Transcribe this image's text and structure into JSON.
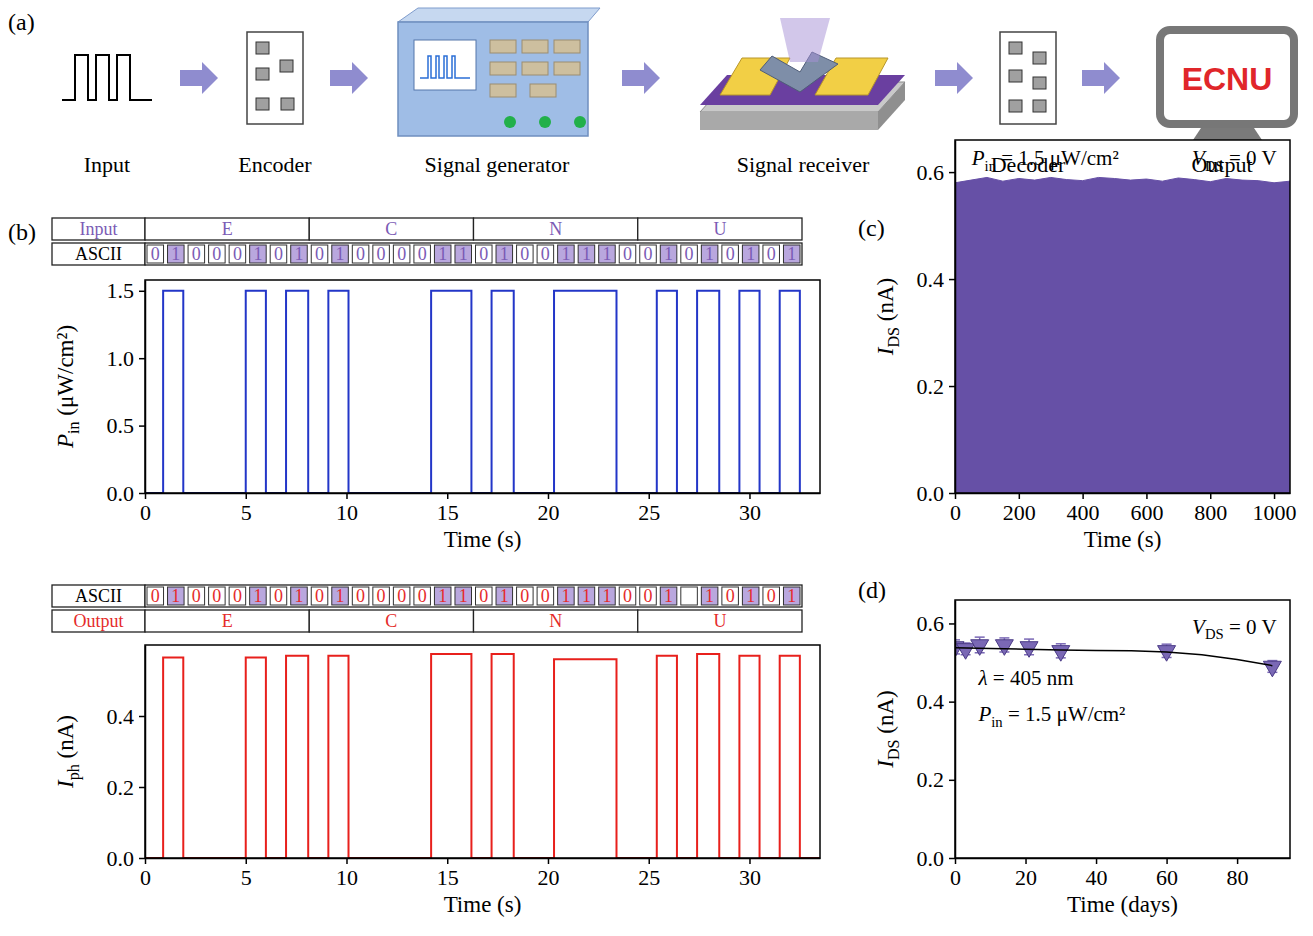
{
  "panel_labels": [
    "(a)",
    "(b)",
    "(c)",
    "(d)"
  ],
  "diagram": {
    "steps": [
      "Input",
      "Encoder",
      "Signal generator",
      "Signal receiver",
      "Decoder",
      "Output"
    ],
    "screen_text": "ECNU"
  },
  "chart_data": [
    {
      "type": "line",
      "xlabel": "Time (s)",
      "ylabel": [
        "P",
        "in",
        " (μW/cm²)"
      ],
      "xlim": [
        0,
        33.5
      ],
      "xticks": [
        0,
        5,
        10,
        15,
        20,
        25,
        30
      ],
      "ylim": [
        0,
        1.58
      ],
      "yticks": [
        {
          "value": 0,
          "label": "0.0"
        },
        0.5,
        {
          "value": 1,
          "label": "1.0"
        },
        1.5
      ],
      "grid": false,
      "table": {
        "title": "Input",
        "letters": [
          "E",
          "C",
          "N",
          "U"
        ],
        "code_label": "ASCII",
        "bits": [
          0,
          1,
          0,
          0,
          0,
          1,
          0,
          1,
          0,
          1,
          0,
          0,
          0,
          0,
          1,
          1,
          0,
          1,
          0,
          0,
          1,
          1,
          1,
          0,
          0,
          1,
          0,
          1,
          0,
          1,
          0,
          1
        ]
      },
      "series": [
        {
          "color": "#2336c8",
          "x": [
            0,
            0.9,
            0.9,
            1.9,
            1.9,
            5,
            5,
            6,
            6,
            7,
            7,
            8.1,
            8.1,
            9.1,
            9.1,
            10.1,
            10.1,
            14.2,
            14.2,
            16.2,
            16.2,
            17.2,
            17.2,
            18.3,
            18.3,
            20.3,
            20.3,
            23.4,
            23.4,
            25.4,
            25.4,
            26.4,
            26.4,
            27.4,
            27.4,
            28.5,
            28.5,
            29.5,
            29.5,
            30.5,
            30.5,
            31.5,
            31.5,
            32.5,
            32.5
          ],
          "values": [
            0,
            0,
            1.5,
            1.5,
            0,
            0,
            1.5,
            1.5,
            0,
            0,
            1.5,
            1.5,
            0,
            0,
            1.5,
            1.5,
            0,
            0,
            1.5,
            1.5,
            0,
            0,
            1.5,
            1.5,
            0,
            0,
            1.5,
            1.5,
            0,
            0,
            1.5,
            1.5,
            0,
            0,
            1.5,
            1.5,
            0,
            0,
            1.5,
            1.5,
            0,
            0,
            1.5,
            1.5,
            0
          ]
        }
      ]
    },
    {
      "type": "line",
      "xlabel": "Time (s)",
      "ylabel": [
        "I",
        "ph",
        " (nA)"
      ],
      "xlim": [
        0,
        33.5
      ],
      "xticks": [
        0,
        5,
        10,
        15,
        20,
        25,
        30
      ],
      "ylim": [
        0,
        0.6
      ],
      "yticks": [
        {
          "value": 0,
          "label": "0.0"
        },
        0.2,
        0.4
      ],
      "grid": false,
      "table": {
        "title": "Output",
        "letters": [
          "E",
          "C",
          "N",
          "U"
        ],
        "code_label": "ASCII",
        "bits": [
          0,
          1,
          0,
          0,
          0,
          1,
          0,
          1,
          0,
          1,
          0,
          0,
          0,
          0,
          1,
          1,
          0,
          1,
          0,
          0,
          1,
          1,
          1,
          0,
          0,
          1,
          null,
          1,
          0,
          1,
          0,
          1
        ]
      },
      "series": [
        {
          "color": "#e8201c",
          "x": [
            0,
            0.9,
            0.9,
            1.9,
            1.9,
            5,
            5,
            6,
            6,
            7,
            7,
            8.1,
            8.1,
            9.1,
            9.1,
            10.1,
            10.1,
            14.2,
            14.2,
            16.2,
            16.2,
            17.2,
            17.2,
            18.3,
            18.3,
            20.3,
            20.3,
            23.4,
            23.4,
            25.4,
            25.4,
            26.4,
            26.4,
            27.4,
            27.4,
            28.5,
            28.5,
            29.5,
            29.5,
            30.5,
            30.5,
            31.5,
            31.5,
            32.5,
            32.5,
            33.5
          ],
          "values": [
            0,
            0,
            0.565,
            0.565,
            0,
            0,
            0.565,
            0.565,
            0,
            0,
            0.57,
            0.57,
            0,
            0,
            0.57,
            0.57,
            0,
            0,
            0.575,
            0.575,
            0,
            0,
            0.575,
            0.575,
            0,
            0,
            0.56,
            0.56,
            0,
            0,
            0.57,
            0.57,
            0,
            0,
            0.575,
            0.575,
            0,
            0,
            0.57,
            0.57,
            0,
            0,
            0.57,
            0.57,
            0,
            0
          ]
        }
      ]
    },
    {
      "type": "area",
      "xlabel": "Time (s)",
      "ylabel": [
        "I",
        "DS",
        " (nA)"
      ],
      "xlim": [
        0,
        1050
      ],
      "xticks": [
        0,
        200,
        400,
        600,
        800,
        1000
      ],
      "ylim": [
        0,
        0.66
      ],
      "yticks": [
        {
          "value": 0,
          "label": "0.0"
        },
        0.2,
        0.4,
        0.6
      ],
      "grid": false,
      "annotations": [
        [
          "P",
          "in",
          " = 1.5 μW/cm²"
        ],
        [
          "V",
          "DS",
          " = 0 V"
        ]
      ],
      "series": [
        {
          "color": "#6650a6",
          "x": [
            0,
            50,
            100,
            150,
            200,
            250,
            300,
            350,
            400,
            450,
            500,
            550,
            600,
            650,
            700,
            750,
            800,
            850,
            900,
            950,
            1000,
            1050
          ],
          "values": [
            0.58,
            0.585,
            0.59,
            0.583,
            0.588,
            0.585,
            0.59,
            0.586,
            0.584,
            0.59,
            0.588,
            0.585,
            0.587,
            0.583,
            0.589,
            0.586,
            0.582,
            0.588,
            0.585,
            0.584,
            0.58,
            0.583
          ]
        }
      ]
    },
    {
      "type": "scatter",
      "xlabel": "Time (days)",
      "ylabel": [
        "I",
        "DS",
        " (nA)"
      ],
      "xlim": [
        0,
        95
      ],
      "xticks": [
        0,
        20,
        40,
        60,
        80
      ],
      "ylim": [
        0,
        0.66
      ],
      "yticks": [
        {
          "value": 0,
          "label": "0.0"
        },
        0.2,
        0.4,
        0.6
      ],
      "grid": false,
      "annotations": [
        [
          "V",
          "DS",
          " = 0 V"
        ],
        [
          "λ",
          " = 405 nm"
        ],
        [
          "P",
          "in",
          " = 1.5 μW/cm²"
        ]
      ],
      "series": [
        {
          "type": "scatter",
          "marker": "triangle-down",
          "color": "#7a68b5",
          "x": [
            0,
            3,
            7,
            14,
            21,
            30,
            60,
            90
          ],
          "values": [
            0.54,
            0.535,
            0.545,
            0.545,
            0.54,
            0.53,
            0.53,
            0.49
          ],
          "errors": [
            0.018,
            0.015,
            0.02,
            0.018,
            0.02,
            0.018,
            0.017,
            0.015
          ]
        },
        {
          "type": "line",
          "color": "#000000",
          "x": [
            0,
            10,
            20,
            30,
            40,
            50,
            60,
            70,
            80,
            90
          ],
          "values": [
            0.538,
            0.536,
            0.534,
            0.532,
            0.531,
            0.53,
            0.527,
            0.52,
            0.508,
            0.492
          ]
        }
      ]
    }
  ]
}
